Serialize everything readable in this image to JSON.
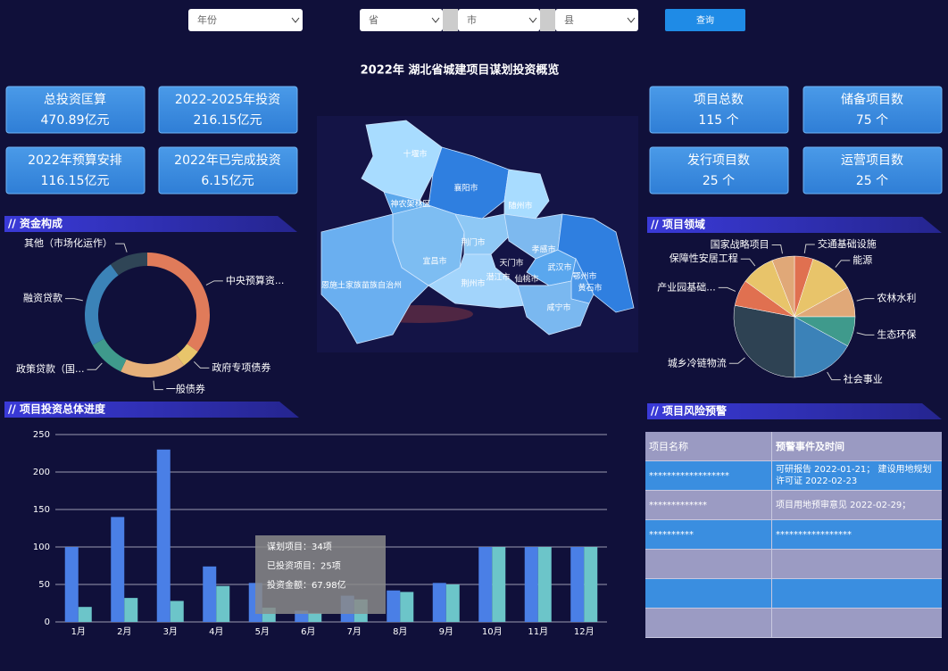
{
  "filters": {
    "year": "年份",
    "province": "省",
    "city": "市",
    "county": "县",
    "button": "查询"
  },
  "title": "2022年 湖北省城建项目谋划投资概览",
  "kpis": {
    "left": [
      {
        "label": "总投资匡算",
        "value": "470.89亿元"
      },
      {
        "label": "2022-2025年投资",
        "value": "216.15亿元"
      },
      {
        "label": "2022年预算安排",
        "value": "116.15亿元"
      },
      {
        "label": "2022年已完成投资",
        "value": "6.15亿元"
      }
    ],
    "right": [
      {
        "label": "项目总数",
        "value": "115 个"
      },
      {
        "label": "储备项目数",
        "value": "75 个"
      },
      {
        "label": "发行项目数",
        "value": "25 个"
      },
      {
        "label": "运营项目数",
        "value": "25 个"
      }
    ]
  },
  "map": {
    "regions": [
      "十堰市",
      "襄阳市",
      "随州市",
      "神农架林区",
      "荆门市",
      "宜昌市",
      "孝感市",
      "天门市",
      "武汉市",
      "鄂州市",
      "黄石市",
      "潜江市",
      "仙桃市",
      "荆州市",
      "恩施土家族苗族自治州",
      "咸宁市"
    ]
  },
  "chart_data": [
    {
      "type": "donut",
      "title": "// 资金构成",
      "categories": [
        "中央预算资...",
        "政府专项债券",
        "一般债券",
        "政策贷款（国...",
        "融资贷款",
        "其他（市场化运作）"
      ],
      "values": [
        35,
        5,
        17,
        10,
        23,
        10
      ],
      "colors": [
        "#e07b5a",
        "#e8c56b",
        "#e6b07a",
        "#3f9a8c",
        "#3b83b8",
        "#2f4556"
      ]
    },
    {
      "type": "pie",
      "title": "// 项目领域",
      "categories": [
        "交通基础设施",
        "能源",
        "农林水利",
        "生态环保",
        "社会事业",
        "城乡冷链物流",
        "产业园基础...",
        "保障性安居工程",
        "国家战略项目"
      ],
      "values": [
        5,
        12,
        8,
        8,
        17,
        28,
        7,
        9,
        6
      ],
      "colors": [
        "#e07050",
        "#e8c46a",
        "#e0a878",
        "#3f9a8c",
        "#3b82b8",
        "#2e4253",
        "#e07050",
        "#e8c46a",
        "#e0a878"
      ]
    },
    {
      "type": "bar",
      "title": "// 项目投资总体进度",
      "categories": [
        "1月",
        "2月",
        "3月",
        "4月",
        "5月",
        "6月",
        "7月",
        "8月",
        "9月",
        "10月",
        "11月",
        "12月"
      ],
      "series": [
        {
          "color": "#4a7fe6",
          "values": [
            100,
            140,
            230,
            74,
            52,
            15,
            35,
            42,
            52,
            100,
            100,
            100
          ]
        },
        {
          "color": "#6cc5c9",
          "values": [
            20,
            32,
            28,
            48,
            19,
            12,
            30,
            40,
            50,
            100,
            100,
            100
          ]
        }
      ],
      "ylim": [
        0,
        250
      ],
      "yticks": [
        0,
        50,
        100,
        150,
        200,
        250
      ],
      "grid": true
    }
  ],
  "tooltip": [
    "谋划项目：34项",
    "已投资项目：25项",
    "投资金额：67.98亿"
  ],
  "risk_table": {
    "title": "// 项目风险预警",
    "header": [
      "项目名称",
      "预警事件及时间"
    ],
    "rows": [
      [
        "******************",
        "可研报告  2022-01-21；   建设用地规划许可证  2022-02-23"
      ],
      [
        "*************",
        "项目用地预审意见   2022-02-29；"
      ],
      [
        "**********",
        "*****************"
      ]
    ]
  }
}
